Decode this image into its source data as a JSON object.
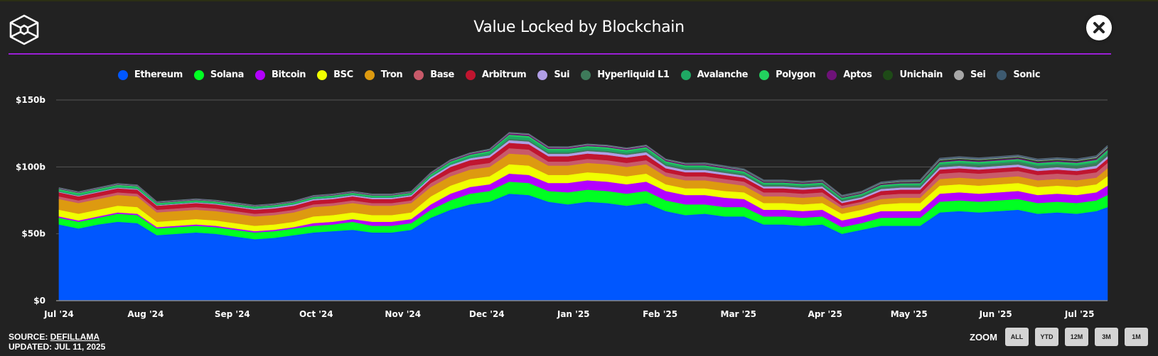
{
  "header": {
    "title": "Value Locked by Blockchain",
    "logo_icon": "cube-logo-icon",
    "close_icon": "close-icon"
  },
  "footer": {
    "source_prefix": "SOURCE: ",
    "source_link": "DEFILLAMA",
    "updated": "UPDATED: JUL 11, 2025"
  },
  "zoom": {
    "label": "ZOOM",
    "buttons": [
      "ALL",
      "YTD",
      "12M",
      "3M",
      "1M"
    ]
  },
  "colors": {
    "background": "#222222",
    "accent_divider": "#9b1fd6",
    "gridline": "#555555"
  },
  "chart_data": {
    "type": "area",
    "stacked": true,
    "title": "Value Locked by Blockchain",
    "xlabel": "",
    "ylabel": "",
    "ylim": [
      0,
      150
    ],
    "y_unit": "billion USD",
    "yticks": [
      0,
      50,
      100,
      150
    ],
    "ytick_labels": [
      "$0",
      "$50b",
      "$100b",
      "$150b"
    ],
    "xtick_labels": [
      "Jul '24",
      "Aug '24",
      "Sep '24",
      "Oct '24",
      "Nov '24",
      "Dec '24",
      "Jan '25",
      "Feb '25",
      "Mar '25",
      "Apr '25",
      "May '25",
      "Jun '25",
      "Jul '25"
    ],
    "grid": true,
    "legend_position": "top",
    "x": [
      "2024-07-01",
      "2024-07-08",
      "2024-07-15",
      "2024-07-22",
      "2024-07-29",
      "2024-08-05",
      "2024-08-12",
      "2024-08-19",
      "2024-08-26",
      "2024-09-02",
      "2024-09-09",
      "2024-09-16",
      "2024-09-23",
      "2024-09-30",
      "2024-10-07",
      "2024-10-14",
      "2024-10-21",
      "2024-10-28",
      "2024-11-04",
      "2024-11-11",
      "2024-11-18",
      "2024-11-25",
      "2024-12-02",
      "2024-12-09",
      "2024-12-16",
      "2024-12-23",
      "2024-12-30",
      "2025-01-06",
      "2025-01-13",
      "2025-01-20",
      "2025-01-27",
      "2025-02-03",
      "2025-02-10",
      "2025-02-17",
      "2025-02-24",
      "2025-03-03",
      "2025-03-10",
      "2025-03-17",
      "2025-03-24",
      "2025-03-31",
      "2025-04-07",
      "2025-04-14",
      "2025-04-21",
      "2025-04-28",
      "2025-05-05",
      "2025-05-12",
      "2025-05-19",
      "2025-05-26",
      "2025-06-02",
      "2025-06-09",
      "2025-06-16",
      "2025-06-23",
      "2025-06-30",
      "2025-07-07",
      "2025-07-11"
    ],
    "series": [
      {
        "name": "Ethereum",
        "color": "#0057ff",
        "values": [
          57,
          54,
          57,
          59,
          58,
          49,
          50,
          51,
          50,
          48,
          46,
          47,
          49,
          51,
          52,
          53,
          51,
          51,
          53,
          62,
          68,
          72,
          74,
          80,
          79,
          74,
          72,
          74,
          73,
          71,
          73,
          67,
          64,
          65,
          63,
          63,
          57,
          57,
          56,
          57,
          50,
          53,
          56,
          56,
          56,
          66,
          67,
          66,
          67,
          68,
          65,
          66,
          65,
          67,
          70
        ]
      },
      {
        "name": "Solana",
        "color": "#00ff22",
        "values": [
          5,
          5,
          5,
          6,
          6,
          5,
          5,
          5,
          5,
          5,
          5,
          5,
          5,
          5,
          5,
          6,
          5,
          5,
          5,
          6,
          7,
          8,
          8,
          9,
          9,
          8,
          9,
          9,
          9,
          9,
          9,
          8,
          8,
          7,
          7,
          7,
          6,
          6,
          6,
          6,
          5,
          5,
          6,
          6,
          6,
          8,
          8,
          8,
          8,
          8,
          8,
          8,
          8,
          8,
          9
        ]
      },
      {
        "name": "Bitcoin",
        "color": "#b300ff",
        "values": [
          1,
          1,
          1,
          1,
          1,
          1,
          1,
          1,
          1,
          1,
          1,
          1,
          1,
          2,
          2,
          2,
          3,
          3,
          3,
          4,
          5,
          5,
          5,
          6,
          6,
          6,
          7,
          7,
          7,
          7,
          7,
          7,
          7,
          7,
          7,
          6,
          5,
          5,
          5,
          5,
          5,
          5,
          5,
          5,
          5,
          6,
          6,
          6,
          6,
          6,
          6,
          6,
          6,
          6,
          7
        ]
      },
      {
        "name": "BSC",
        "color": "#f0ff00",
        "values": [
          5,
          5,
          5,
          5,
          5,
          4,
          4,
          4,
          4,
          4,
          4,
          4,
          4,
          5,
          5,
          5,
          5,
          5,
          5,
          6,
          6,
          6,
          6,
          7,
          7,
          6,
          6,
          6,
          6,
          6,
          6,
          5,
          5,
          5,
          5,
          5,
          5,
          5,
          5,
          5,
          5,
          5,
          5,
          6,
          6,
          6,
          6,
          6,
          6,
          6,
          6,
          6,
          6,
          6,
          7
        ]
      },
      {
        "name": "Tron",
        "color": "#dd9a10",
        "values": [
          8,
          8,
          8,
          8,
          8,
          7,
          7,
          7,
          7,
          7,
          7,
          7,
          7,
          7,
          7,
          7,
          7,
          7,
          7,
          7,
          7,
          7,
          7,
          8,
          8,
          7,
          7,
          7,
          7,
          7,
          7,
          6,
          6,
          6,
          6,
          5,
          5,
          5,
          5,
          5,
          4,
          4,
          4,
          4,
          4,
          5,
          5,
          5,
          5,
          5,
          5,
          5,
          5,
          5,
          6
        ]
      },
      {
        "name": "Base",
        "color": "#c85a6a",
        "values": [
          2,
          2,
          2,
          2,
          2,
          2,
          2,
          2,
          2,
          2,
          2,
          2,
          2,
          2,
          2,
          2,
          2,
          2,
          2,
          3,
          3,
          3,
          3,
          4,
          4,
          3,
          3,
          3,
          3,
          3,
          3,
          3,
          3,
          3,
          3,
          3,
          3,
          3,
          3,
          3,
          2,
          2,
          3,
          3,
          3,
          4,
          4,
          4,
          4,
          4,
          4,
          4,
          4,
          4,
          4
        ]
      },
      {
        "name": "Arbitrum",
        "color": "#c0152f",
        "values": [
          3,
          3,
          3,
          3,
          3,
          3,
          3,
          3,
          3,
          3,
          3,
          3,
          3,
          3,
          3,
          3,
          3,
          3,
          3,
          3,
          4,
          4,
          4,
          4,
          4,
          4,
          4,
          4,
          4,
          4,
          4,
          3,
          3,
          3,
          3,
          3,
          3,
          3,
          3,
          3,
          2,
          2,
          3,
          3,
          3,
          3,
          3,
          3,
          3,
          3,
          3,
          3,
          3,
          3,
          3
        ]
      },
      {
        "name": "Sui",
        "color": "#b09ee6",
        "values": [
          0.5,
          0.5,
          0.6,
          0.6,
          0.6,
          0.5,
          0.5,
          0.6,
          0.6,
          0.7,
          0.8,
          0.9,
          1,
          1,
          1,
          1,
          1,
          1,
          1,
          1.5,
          1.5,
          1.5,
          1.7,
          2,
          2,
          1.8,
          1.8,
          1.9,
          2,
          2,
          2,
          1.8,
          1.7,
          1.7,
          1.6,
          1.5,
          1.4,
          1.4,
          1.4,
          1.4,
          1.3,
          1.3,
          1.5,
          1.6,
          1.6,
          1.8,
          1.8,
          1.8,
          1.8,
          1.8,
          1.8,
          1.8,
          1.8,
          1.9,
          2
        ]
      },
      {
        "name": "Hyperliquid L1",
        "color": "#3e7a5a",
        "values": [
          0,
          0,
          0,
          0,
          0,
          0,
          0,
          0,
          0,
          0,
          0,
          0,
          0,
          0,
          0,
          0,
          0,
          0,
          0,
          0,
          0,
          0,
          0.5,
          1,
          1,
          1,
          1,
          1,
          1,
          1,
          1.2,
          1.2,
          1.3,
          1.3,
          1.2,
          1.2,
          1.1,
          1.1,
          1.1,
          1.1,
          1,
          1,
          1.2,
          1.3,
          1.4,
          1.6,
          1.8,
          1.9,
          1.9,
          2,
          2,
          2,
          2.1,
          2.2,
          2.3
        ]
      },
      {
        "name": "Avalanche",
        "color": "#1fa864",
        "values": [
          1,
          1,
          1,
          1,
          1,
          0.8,
          0.8,
          0.8,
          0.8,
          0.8,
          0.8,
          0.8,
          0.8,
          0.8,
          0.9,
          0.9,
          0.9,
          0.9,
          0.9,
          1.2,
          1.5,
          1.6,
          1.7,
          2,
          2,
          1.8,
          1.7,
          1.7,
          1.7,
          1.6,
          1.6,
          1.4,
          1.3,
          1.3,
          1.2,
          1.1,
          1,
          1,
          1,
          1,
          0.9,
          0.9,
          1,
          1,
          1,
          1.2,
          1.2,
          1.2,
          1.2,
          1.2,
          1.2,
          1.2,
          1.2,
          1.2,
          1.3
        ]
      },
      {
        "name": "Polygon",
        "color": "#22d05e",
        "values": [
          1,
          1,
          1,
          1,
          1,
          0.8,
          0.8,
          0.8,
          0.8,
          0.8,
          0.8,
          0.8,
          0.8,
          0.8,
          0.8,
          0.8,
          0.8,
          0.8,
          0.8,
          0.9,
          1,
          1,
          1,
          1.1,
          1.1,
          1,
          1,
          1,
          1,
          1,
          1,
          0.9,
          0.9,
          0.9,
          0.9,
          0.8,
          0.8,
          0.8,
          0.8,
          0.8,
          0.7,
          0.7,
          0.8,
          0.8,
          0.8,
          0.9,
          0.9,
          0.9,
          0.9,
          0.9,
          0.9,
          0.9,
          0.9,
          0.9,
          1
        ]
      },
      {
        "name": "Aptos",
        "color": "#6e1278",
        "values": [
          0.4,
          0.4,
          0.4,
          0.4,
          0.4,
          0.4,
          0.4,
          0.4,
          0.4,
          0.4,
          0.4,
          0.4,
          0.4,
          0.5,
          0.5,
          0.5,
          0.5,
          0.5,
          0.5,
          0.6,
          0.7,
          0.8,
          0.8,
          1,
          1,
          0.9,
          0.9,
          0.9,
          0.9,
          0.9,
          0.9,
          0.8,
          0.8,
          0.8,
          0.8,
          0.7,
          0.7,
          0.7,
          0.7,
          0.7,
          0.6,
          0.6,
          0.7,
          0.7,
          0.7,
          0.8,
          0.8,
          0.8,
          0.8,
          0.8,
          0.8,
          0.8,
          0.8,
          0.9,
          0.9
        ]
      },
      {
        "name": "Unichain",
        "color": "#1e4a17",
        "values": [
          0,
          0,
          0,
          0,
          0,
          0,
          0,
          0,
          0,
          0,
          0,
          0,
          0,
          0,
          0,
          0,
          0,
          0,
          0,
          0,
          0,
          0,
          0,
          0,
          0,
          0,
          0,
          0,
          0,
          0,
          0,
          0.1,
          0.1,
          0.2,
          0.2,
          0.2,
          0.3,
          0.3,
          0.3,
          0.3,
          0.3,
          0.3,
          0.4,
          0.5,
          0.6,
          0.7,
          0.7,
          0.7,
          0.7,
          0.7,
          0.7,
          0.7,
          0.7,
          0.7,
          0.8
        ]
      },
      {
        "name": "Sei",
        "color": "#a8a8a8",
        "values": [
          0.2,
          0.2,
          0.2,
          0.2,
          0.2,
          0.2,
          0.2,
          0.2,
          0.2,
          0.2,
          0.2,
          0.2,
          0.2,
          0.2,
          0.2,
          0.2,
          0.2,
          0.2,
          0.2,
          0.3,
          0.3,
          0.3,
          0.3,
          0.3,
          0.3,
          0.3,
          0.3,
          0.3,
          0.3,
          0.3,
          0.3,
          0.3,
          0.3,
          0.3,
          0.3,
          0.3,
          0.3,
          0.3,
          0.3,
          0.3,
          0.3,
          0.3,
          0.4,
          0.4,
          0.4,
          0.5,
          0.5,
          0.5,
          0.5,
          0.5,
          0.5,
          0.5,
          0.5,
          0.6,
          0.6
        ]
      },
      {
        "name": "Sonic",
        "color": "#3d5a70",
        "values": [
          0.3,
          0.3,
          0.3,
          0.3,
          0.3,
          0.3,
          0.3,
          0.3,
          0.3,
          0.3,
          0.3,
          0.3,
          0.3,
          0.3,
          0.3,
          0.3,
          0.3,
          0.3,
          0.3,
          0.3,
          0.3,
          0.3,
          0.3,
          0.3,
          0.3,
          0.3,
          0.3,
          0.3,
          0.3,
          0.3,
          0.3,
          0.3,
          0.4,
          0.5,
          0.6,
          0.6,
          0.6,
          0.6,
          0.6,
          0.6,
          0.6,
          0.6,
          0.7,
          0.8,
          0.8,
          0.9,
          0.9,
          0.9,
          0.9,
          0.9,
          0.9,
          0.9,
          0.9,
          0.9,
          1
        ]
      }
    ]
  }
}
